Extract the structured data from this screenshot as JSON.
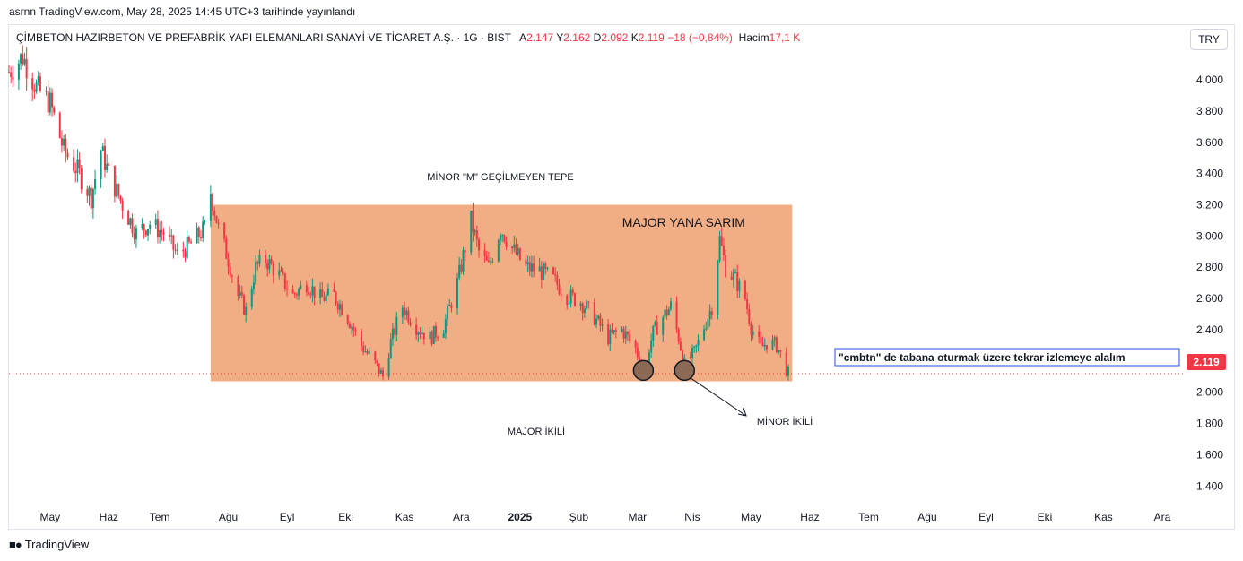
{
  "header": {
    "published": "asrnn TradingView.com, May 28, 2025 14:45 UTC+3 tarihinde yayınlandı"
  },
  "legend": {
    "symbol": "ÇİMBETON HAZIRBETON VE PREFABRİK YAPI ELEMANLARI SANAYİ VE TİCARET A.Ş. · 1G · BIST",
    "open_label": "A",
    "open": "2.147",
    "high_label": "Y",
    "high": "2.162",
    "low_label": "D",
    "low": "2.092",
    "close_label": "K",
    "close": "2.119",
    "change": "−18 (−0,84%)",
    "volume_label": "Hacim",
    "volume": "17,1 K"
  },
  "currency": "TRY",
  "footer": {
    "brand": "TradingView"
  },
  "colors": {
    "up": "#089981",
    "down": "#f23645",
    "zone": "#f0a475",
    "price_tag": "#f23645"
  },
  "chart_data": {
    "type": "candlestick",
    "title": "",
    "xlabel": "",
    "ylabel": "",
    "y_ticks": [
      "4.000",
      "3.800",
      "3.600",
      "3.400",
      "3.200",
      "3.000",
      "2.800",
      "2.600",
      "2.400",
      "2.200",
      "2.000",
      "1.800",
      "1.600",
      "1.400"
    ],
    "ylim": [
      1.27,
      4.35
    ],
    "x_ticks": [
      "May",
      "Haz",
      "Tem",
      "Ağu",
      "Eyl",
      "Eki",
      "Kas",
      "Ara",
      "2025",
      "Şub",
      "Mar",
      "Nis",
      "May",
      "Haz",
      "Tem",
      "Ağu",
      "Eyl",
      "Eki",
      "Kas",
      "Ara"
    ],
    "last_price": "2.119",
    "last_value": 2.119,
    "close_path": [
      [
        "2024-04-24",
        4.05
      ],
      [
        "2024-05-01",
        4.15
      ],
      [
        "2024-05-08",
        3.95
      ],
      [
        "2024-05-15",
        3.85
      ],
      [
        "2024-05-22",
        3.55
      ],
      [
        "2024-05-29",
        3.42
      ],
      [
        "2024-06-05",
        3.25
      ],
      [
        "2024-06-10",
        3.55
      ],
      [
        "2024-06-14",
        3.4
      ],
      [
        "2024-06-21",
        3.2
      ],
      [
        "2024-06-28",
        3.02
      ],
      [
        "2024-07-05",
        3.08
      ],
      [
        "2024-07-12",
        3.02
      ],
      [
        "2024-07-19",
        2.88
      ],
      [
        "2024-07-26",
        2.95
      ],
      [
        "2024-08-02",
        3.05
      ],
      [
        "2024-08-05",
        3.28
      ],
      [
        "2024-08-09",
        3.05
      ],
      [
        "2024-08-14",
        2.85
      ],
      [
        "2024-08-19",
        2.62
      ],
      [
        "2024-08-23",
        2.52
      ],
      [
        "2024-08-28",
        2.8
      ],
      [
        "2024-09-02",
        2.85
      ],
      [
        "2024-09-09",
        2.75
      ],
      [
        "2024-09-16",
        2.62
      ],
      [
        "2024-09-23",
        2.7
      ],
      [
        "2024-09-30",
        2.6
      ],
      [
        "2024-10-07",
        2.62
      ],
      [
        "2024-10-14",
        2.48
      ],
      [
        "2024-10-21",
        2.3
      ],
      [
        "2024-10-28",
        2.18
      ],
      [
        "2024-11-01",
        2.1
      ],
      [
        "2024-11-05",
        2.32
      ],
      [
        "2024-11-11",
        2.55
      ],
      [
        "2024-11-18",
        2.42
      ],
      [
        "2024-11-25",
        2.35
      ],
      [
        "2024-12-02",
        2.42
      ],
      [
        "2024-12-09",
        2.7
      ],
      [
        "2024-12-16",
        3.1
      ],
      [
        "2024-12-20",
        2.9
      ],
      [
        "2024-12-25",
        2.8
      ],
      [
        "2024-12-31",
        3.05
      ],
      [
        "2025-01-06",
        2.92
      ],
      [
        "2025-01-13",
        2.8
      ],
      [
        "2025-01-20",
        2.78
      ],
      [
        "2025-01-27",
        2.72
      ],
      [
        "2025-02-03",
        2.62
      ],
      [
        "2025-02-10",
        2.58
      ],
      [
        "2025-02-17",
        2.48
      ],
      [
        "2025-02-24",
        2.35
      ],
      [
        "2025-03-03",
        2.4
      ],
      [
        "2025-03-10",
        2.28
      ],
      [
        "2025-03-14",
        2.15
      ],
      [
        "2025-03-19",
        2.38
      ],
      [
        "2025-03-24",
        2.48
      ],
      [
        "2025-03-28",
        2.55
      ],
      [
        "2025-04-01",
        2.35
      ],
      [
        "2025-04-04",
        2.18
      ],
      [
        "2025-04-09",
        2.25
      ],
      [
        "2025-04-14",
        2.42
      ],
      [
        "2025-04-18",
        2.55
      ],
      [
        "2025-04-22",
        2.98
      ],
      [
        "2025-04-25",
        2.8
      ],
      [
        "2025-04-30",
        2.72
      ],
      [
        "2025-05-05",
        2.6
      ],
      [
        "2025-05-08",
        2.42
      ],
      [
        "2025-05-13",
        2.28
      ],
      [
        "2025-05-16",
        2.32
      ],
      [
        "2025-05-21",
        2.3
      ],
      [
        "2025-05-27",
        2.119
      ]
    ],
    "zone": {
      "label": "MAJOR YANA SARIM",
      "from": "2024-08-05",
      "to": "2025-05-29",
      "top": 3.2,
      "bottom": 2.07
    },
    "annotations": [
      {
        "id": "tepe",
        "text": "MİNOR \"M\" GEÇİLMEYEN TEPE"
      },
      {
        "id": "major",
        "text": "MAJOR İKİLİ"
      },
      {
        "id": "minor",
        "text": "MİNOR İKİLİ"
      },
      {
        "id": "note",
        "text": "\"cmbtn\" de tabana oturmak üzere tekrar izlemeye alalım"
      }
    ],
    "markers": [
      {
        "date": "2025-03-14",
        "value": 2.14
      },
      {
        "date": "2025-04-04",
        "value": 2.14
      }
    ]
  }
}
